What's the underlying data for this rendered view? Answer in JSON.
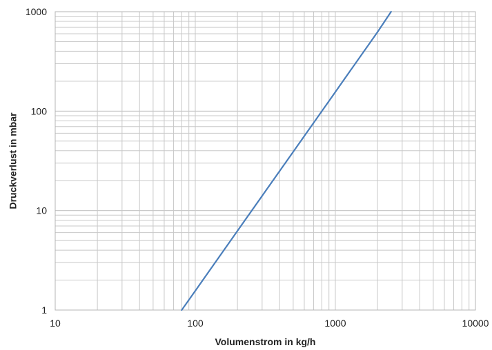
{
  "chart_data": {
    "type": "line",
    "title": "",
    "xlabel": "Volumenstrom in kg/h",
    "ylabel": "Druckverlust in mbar",
    "x_scale": "log",
    "y_scale": "log",
    "xlim": [
      10,
      10000
    ],
    "ylim": [
      1,
      1000
    ],
    "x_ticks": [
      "10",
      "100",
      "1000",
      "10000"
    ],
    "y_ticks": [
      "1",
      "10",
      "100",
      "1000"
    ],
    "grid": true,
    "legend": "none",
    "series": [
      {
        "color": "#4a7ebb",
        "x": [
          80,
          100,
          200,
          500,
          1000,
          2000,
          2500
        ],
        "y": [
          1.0,
          1.56,
          6.25,
          39,
          156,
          625,
          1000
        ]
      }
    ],
    "colors": {
      "grid": "#c8c8c8",
      "axis": "#b4b4b4",
      "text": "#222222"
    }
  }
}
